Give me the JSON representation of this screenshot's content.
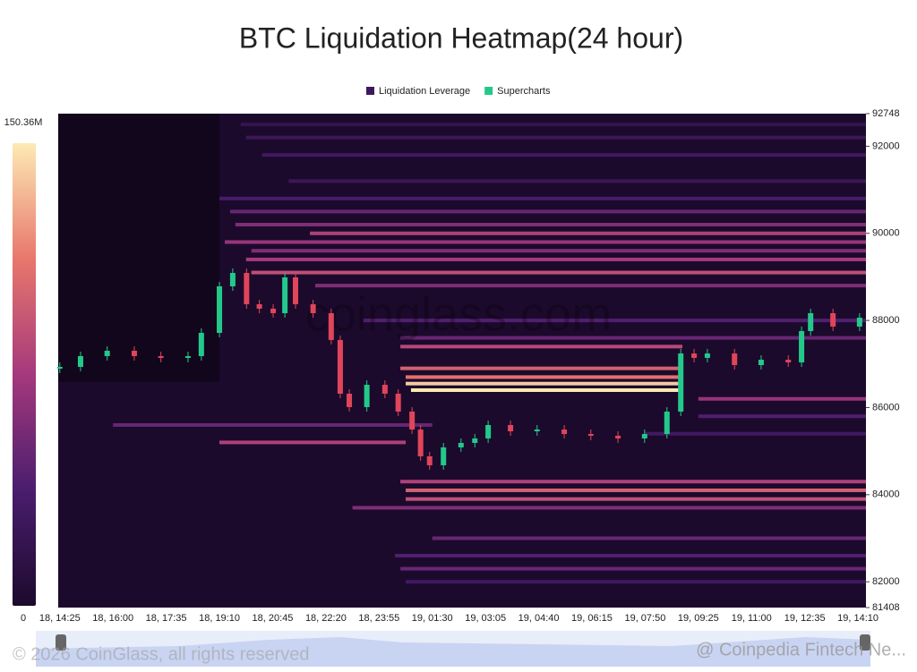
{
  "chart_data": {
    "type": "heatmap",
    "title": "BTC Liquidation Heatmap(24 hour)",
    "watermark": "coinglass.com",
    "footer": "© 2026 CoinGlass, all rights reserved",
    "credit": "@ Coinpedia Fintech Ne...",
    "legend": [
      {
        "name": "Liquidation Leverage",
        "color": "#3b1a5c"
      },
      {
        "name": "Supercharts",
        "color": "#23c98b"
      }
    ],
    "categories": [
      "18, 14:25",
      "18, 16:00",
      "18, 17:35",
      "18, 19:10",
      "18, 20:45",
      "18, 22:20",
      "18, 23:55",
      "19, 01:30",
      "19, 03:05",
      "19, 04:40",
      "19, 06:15",
      "19, 07:50",
      "19, 09:25",
      "19, 11:00",
      "19, 12:35",
      "19, 14:10"
    ],
    "xlim": [
      -0.03,
      15.15
    ],
    "ylim": [
      81408,
      92748
    ],
    "yticks": [
      81408,
      82000,
      84000,
      86000,
      88000,
      90000,
      92000,
      92748
    ],
    "colorbar": {
      "min": 0,
      "max": {
        "value": 150.36,
        "label": "150.36M"
      }
    },
    "colors": [
      "#1c0a2c",
      "#4a1d6e",
      "#a5397c",
      "#e8776c",
      "#fdeab4"
    ],
    "up_color": "#23c98b",
    "down_color": "#e0455a",
    "price": {
      "x": [
        0,
        0.39,
        0.89,
        1.4,
        1.9,
        2.41,
        2.66,
        3.0,
        3.25,
        3.51,
        3.75,
        4.01,
        4.23,
        4.43,
        4.76,
        5.1,
        5.27,
        5.44,
        5.77,
        6.11,
        6.36,
        6.62,
        6.78,
        6.95,
        7.21,
        7.54,
        7.8,
        8.05,
        8.47,
        8.97,
        9.48,
        9.98,
        10.49,
        10.99,
        11.41,
        11.67,
        11.92,
        12.17,
        12.68,
        13.18,
        13.69,
        13.94,
        14.11,
        14.53,
        15.03
      ],
      "values": [
        86934,
        87181,
        87304,
        87181,
        87140,
        87181,
        87715,
        88783,
        89091,
        88372,
        88270,
        88167,
        88989,
        88372,
        88167,
        87551,
        86318,
        86010,
        86523,
        86318,
        85907,
        85496,
        84880,
        84675,
        85086,
        85188,
        85291,
        85599,
        85455,
        85496,
        85393,
        85352,
        85291,
        85393,
        85907,
        87242,
        87140,
        87242,
        86975,
        87098,
        87037,
        87756,
        88167,
        87859,
        88064
      ]
    },
    "bands": [
      {
        "price": 92500,
        "start": 3.4,
        "end": 15.15,
        "intensity": 20
      },
      {
        "price": 92200,
        "start": 3.5,
        "end": 15.15,
        "intensity": 25
      },
      {
        "price": 91800,
        "start": 3.8,
        "end": 15.15,
        "intensity": 30
      },
      {
        "price": 91200,
        "start": 4.3,
        "end": 15.15,
        "intensity": 25
      },
      {
        "price": 90800,
        "start": 3.0,
        "end": 15.15,
        "intensity": 35
      },
      {
        "price": 90500,
        "start": 3.2,
        "end": 15.15,
        "intensity": 50
      },
      {
        "price": 90200,
        "start": 3.3,
        "end": 15.15,
        "intensity": 60
      },
      {
        "price": 90000,
        "start": 4.7,
        "end": 15.15,
        "intensity": 80
      },
      {
        "price": 89800,
        "start": 3.1,
        "end": 15.15,
        "intensity": 70
      },
      {
        "price": 89600,
        "start": 3.6,
        "end": 15.15,
        "intensity": 60
      },
      {
        "price": 89400,
        "start": 3.5,
        "end": 15.15,
        "intensity": 75
      },
      {
        "price": 89100,
        "start": 3.6,
        "end": 15.15,
        "intensity": 90
      },
      {
        "price": 88800,
        "start": 4.8,
        "end": 15.15,
        "intensity": 60
      },
      {
        "price": 88000,
        "start": 5.7,
        "end": 15.15,
        "intensity": 40
      },
      {
        "price": 87600,
        "start": 6.4,
        "end": 15.15,
        "intensity": 50
      },
      {
        "price": 87400,
        "start": 6.4,
        "end": 11.7,
        "intensity": 85
      },
      {
        "price": 86900,
        "start": 6.4,
        "end": 11.7,
        "intensity": 100
      },
      {
        "price": 86700,
        "start": 6.5,
        "end": 11.7,
        "intensity": 110
      },
      {
        "price": 86550,
        "start": 6.5,
        "end": 11.7,
        "intensity": 140
      },
      {
        "price": 86400,
        "start": 6.6,
        "end": 11.7,
        "intensity": 150
      },
      {
        "price": 86200,
        "start": 12.0,
        "end": 15.15,
        "intensity": 70
      },
      {
        "price": 85800,
        "start": 12.0,
        "end": 15.15,
        "intensity": 40
      },
      {
        "price": 85600,
        "start": 1.0,
        "end": 7.0,
        "intensity": 50
      },
      {
        "price": 85400,
        "start": 11.0,
        "end": 15.15,
        "intensity": 30
      },
      {
        "price": 85200,
        "start": 3.0,
        "end": 6.5,
        "intensity": 80
      },
      {
        "price": 84300,
        "start": 6.4,
        "end": 15.15,
        "intensity": 80
      },
      {
        "price": 84100,
        "start": 6.5,
        "end": 15.15,
        "intensity": 100
      },
      {
        "price": 83900,
        "start": 6.5,
        "end": 15.15,
        "intensity": 90
      },
      {
        "price": 83700,
        "start": 5.5,
        "end": 15.15,
        "intensity": 60
      },
      {
        "price": 83000,
        "start": 7.0,
        "end": 15.15,
        "intensity": 50
      },
      {
        "price": 82600,
        "start": 6.3,
        "end": 15.15,
        "intensity": 40
      },
      {
        "price": 82300,
        "start": 6.4,
        "end": 15.15,
        "intensity": 50
      },
      {
        "price": 82000,
        "start": 6.5,
        "end": 15.15,
        "intensity": 30
      }
    ]
  }
}
